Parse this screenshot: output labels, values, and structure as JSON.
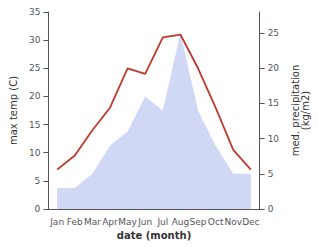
{
  "chart_data": {
    "type": "line",
    "categories": [
      "Jan",
      "Feb",
      "Mar",
      "Apr",
      "May",
      "Jun",
      "Jul",
      "Aug",
      "Sep",
      "Oct",
      "Nov",
      "Dec"
    ],
    "xlabel": "date (month)",
    "ylabel": "max temp (C)",
    "y2label": "med. precipitation\n(kg/m2)",
    "series": [
      {
        "type": "area",
        "axis": "y2",
        "color": "#b0bef0",
        "values": [
          3,
          3,
          5,
          9,
          11,
          16,
          14,
          25,
          14,
          9,
          5,
          5
        ]
      },
      {
        "type": "line",
        "color": "#c0392b",
        "values": [
          7,
          9.5,
          14,
          18,
          25,
          24,
          30.5,
          31,
          25,
          18,
          10.5,
          7
        ]
      }
    ],
    "ylim": [
      0,
      35
    ],
    "yticks": [
      0,
      5,
      10,
      15,
      20,
      25,
      30,
      35
    ],
    "y2lim": [
      0,
      28
    ],
    "y2ticks": [
      0,
      5,
      10,
      15,
      20,
      25
    ],
    "grid": false
  }
}
